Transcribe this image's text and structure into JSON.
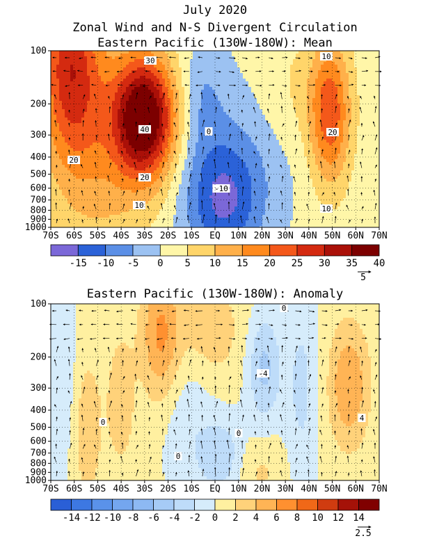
{
  "page": {
    "title_line1": "July 2020",
    "title_line2": "Zonal Wind and N-S Divergent Circulation",
    "title_line3": "Eastern Pacific (130W-180W): Mean"
  },
  "chart_data": [
    {
      "type": "heatmap",
      "title": "Eastern Pacific (130W-180W): Mean",
      "variable": "Zonal wind (mean)",
      "overlay": "N-S divergent circulation vectors",
      "x_ticks": [
        "70S",
        "60S",
        "50S",
        "40S",
        "30S",
        "20S",
        "10S",
        "EQ",
        "10N",
        "20N",
        "30N",
        "40N",
        "50N",
        "60N",
        "70N"
      ],
      "y_ticks": [
        "100",
        "200",
        "300",
        "400",
        "500",
        "600",
        "700",
        "800",
        "900",
        "1000"
      ],
      "y_scale": "log",
      "y_range": [
        1000,
        100
      ],
      "colorbar_levels": [
        "-15",
        "-10",
        "-5",
        "0",
        "5",
        "10",
        "15",
        "20",
        "25",
        "30",
        "35",
        "40"
      ],
      "colorbar_colors": [
        "#7b68d8",
        "#2b62d8",
        "#5b8fe6",
        "#9cc2f2",
        "#fff6a8",
        "#ffd56a",
        "#ffb04a",
        "#ff8a1e",
        "#f4581a",
        "#d42a10",
        "#aa1008",
        "#7c0000"
      ],
      "contour_labels": [
        "30",
        "40",
        "20",
        "20",
        "10",
        "0",
        "-10",
        "10",
        "20",
        "10"
      ],
      "features": [
        {
          "name": "Southern jet core",
          "lat": -30,
          "p": 250,
          "value": 42
        },
        {
          "name": "High-latitude southern westerlies",
          "lat": -62,
          "p": 130,
          "value": 26
        },
        {
          "name": "Northern jet core",
          "lat": 49,
          "p": 220,
          "value": 22
        },
        {
          "name": "Equatorial easterlies",
          "lat": 3,
          "p": 750,
          "value": -13
        }
      ],
      "vector_reference": "5"
    },
    {
      "type": "heatmap",
      "title": "Eastern Pacific (130W-180W): Anomaly",
      "variable": "Zonal wind (anomaly)",
      "overlay": "N-S divergent circulation anomaly vectors",
      "x_ticks": [
        "70S",
        "60S",
        "50S",
        "40S",
        "30S",
        "20S",
        "10S",
        "EQ",
        "10N",
        "20N",
        "30N",
        "40N",
        "50N",
        "60N",
        "70N"
      ],
      "y_ticks": [
        "100",
        "200",
        "300",
        "400",
        "500",
        "600",
        "700",
        "800",
        "900",
        "1000"
      ],
      "y_scale": "log",
      "y_range": [
        1000,
        100
      ],
      "colorbar_levels": [
        "-14",
        "-12",
        "-10",
        "-8",
        "-6",
        "-4",
        "-2",
        "0",
        "2",
        "4",
        "6",
        "8",
        "10",
        "12",
        "14"
      ],
      "colorbar_colors": [
        "#2a5fd6",
        "#3d78e2",
        "#5a92ea",
        "#74a6ef",
        "#8db9f3",
        "#a6cbf6",
        "#bedcf9",
        "#d6ecfb",
        "#fff0a0",
        "#ffd27a",
        "#ffb455",
        "#ff9030",
        "#f06818",
        "#d03c10",
        "#a51208",
        "#800000"
      ],
      "contour_labels": [
        "0",
        "-4",
        "0",
        "0",
        "4",
        "0"
      ],
      "features": [
        {
          "name": "Southern subtropical positive anomaly",
          "lat": -23,
          "p": 150,
          "value": 6
        },
        {
          "name": "Northern high-latitude positive anomaly",
          "lat": 57,
          "p": 300,
          "value": 5
        },
        {
          "name": "Subtropical north negative anomaly",
          "lat": 21,
          "p": 220,
          "value": -4
        },
        {
          "name": "Equatorial negative anomaly",
          "lat": 3,
          "p": 720,
          "value": -4
        }
      ],
      "vector_reference": "2.5"
    }
  ]
}
